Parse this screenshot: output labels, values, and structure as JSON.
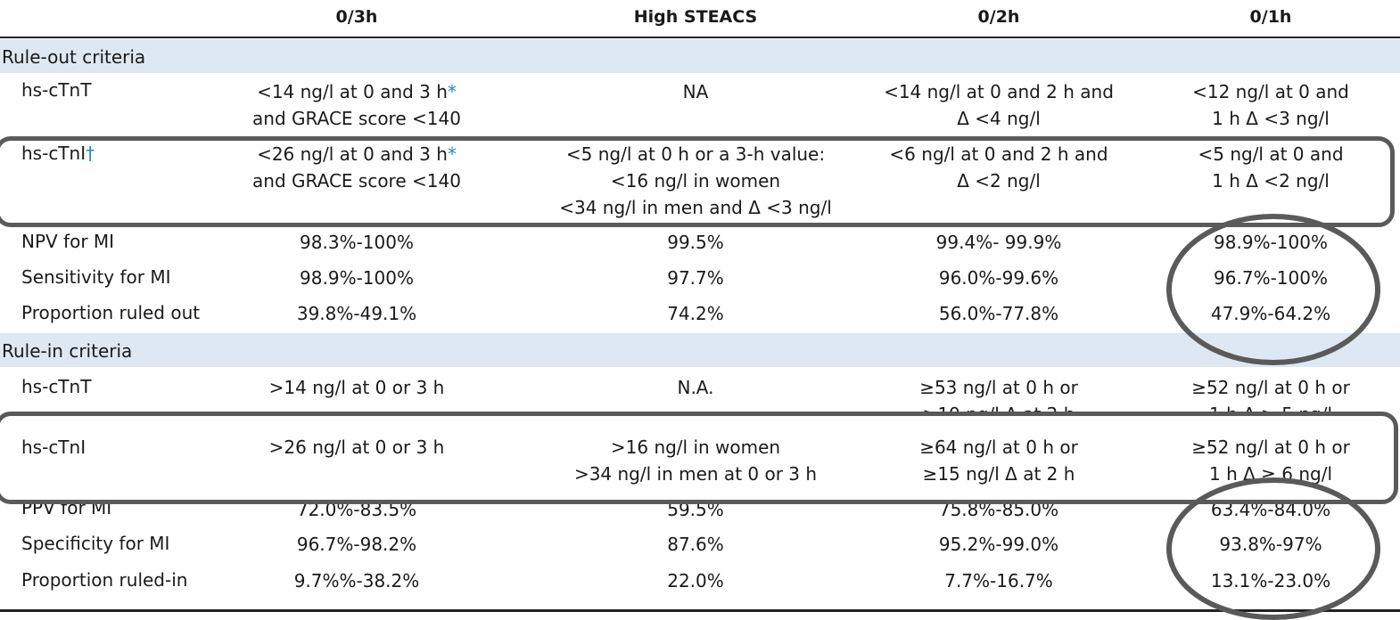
{
  "columns": [
    "",
    "0/3h",
    "High STEACS",
    "0/2h",
    "0/1h"
  ],
  "sections": {
    "rule_out": "Rule-out criteria",
    "rule_in": "Rule-in criteria"
  },
  "rule_out_rows": [
    {
      "label": "hs-cTnT",
      "mark": "",
      "c1": "<14 ng/l at 0 and 3 h",
      "c1_mark": "*",
      "c1b": "and GRACE score <140",
      "c2": "NA",
      "c3": "<14 ng/l at 0 and 2 h and\nΔ <4 ng/l",
      "c4": "<12 ng/l at 0 and\n1 h Δ <3 ng/l"
    },
    {
      "label": "hs-cTnI",
      "mark": "†",
      "c1": "<26 ng/l at 0 and 3 h",
      "c1_mark": "*",
      "c1b": "and GRACE score <140",
      "c2": "<5 ng/l at 0 h or a 3-h value:\n<16 ng/l in women\n<34 ng/l in men and Δ <3 ng/l",
      "c3": "<6 ng/l at 0 and 2 h and\nΔ <2 ng/l",
      "c4": "<5 ng/l at 0 and\n1 h Δ <2 ng/l"
    },
    {
      "label": "NPV for MI",
      "c1": "98.3%-100%",
      "c2": "99.5%",
      "c3": "99.4%- 99.9%",
      "c4": "98.9%-100%"
    },
    {
      "label": "Sensitivity for MI",
      "c1": "98.9%-100%",
      "c2": "97.7%",
      "c3": "96.0%-99.6%",
      "c4": "96.7%-100%"
    },
    {
      "label": "Proportion ruled out",
      "c1": "39.8%-49.1%",
      "c2": "74.2%",
      "c3": "56.0%-77.8%",
      "c4": "47.9%-64.2%"
    }
  ],
  "rule_in_rows": [
    {
      "label": "hs-cTnT",
      "c1": ">14 ng/l at 0 or 3 h",
      "c2": "N.A.",
      "c3": "≥53 ng/l at 0 h or\n≥10 ng/l Δ at 2 h",
      "c4": "≥52 ng/l at 0 h or\n1 h Δ ≥ 5 ng/l"
    },
    {
      "label": "hs-cTnI",
      "c1": ">26 ng/l at 0 or 3 h",
      "c2": ">16 ng/l in women\n>34 ng/l in men at 0 or 3 h",
      "c3": "≥64 ng/l at 0 h or\n≥15 ng/l Δ at 2 h",
      "c4": "≥52 ng/l at 0 h or\n1 h Δ ≥ 6 ng/l"
    },
    {
      "label": "PPV for MI",
      "c1": "72.0%-83.5%",
      "c2": "59.5%",
      "c3": "75.8%-85.0%",
      "c4": "63.4%-84.0%"
    },
    {
      "label": "Specificity for MI",
      "c1": "96.7%-98.2%",
      "c2": "87.6%",
      "c3": "95.2%-99.0%",
      "c4": "93.8%-97%"
    },
    {
      "label": "Proportion ruled-in",
      "c1": "9.7%%-38.2%",
      "c2": "22.0%",
      "c3": "7.7%-16.7%",
      "c4": "13.1%-23.0%"
    }
  ],
  "colors": {
    "section_bg": "#dde8f3",
    "annotation": "#5a5a5a",
    "footnote_mark": "#1a8ad4"
  }
}
